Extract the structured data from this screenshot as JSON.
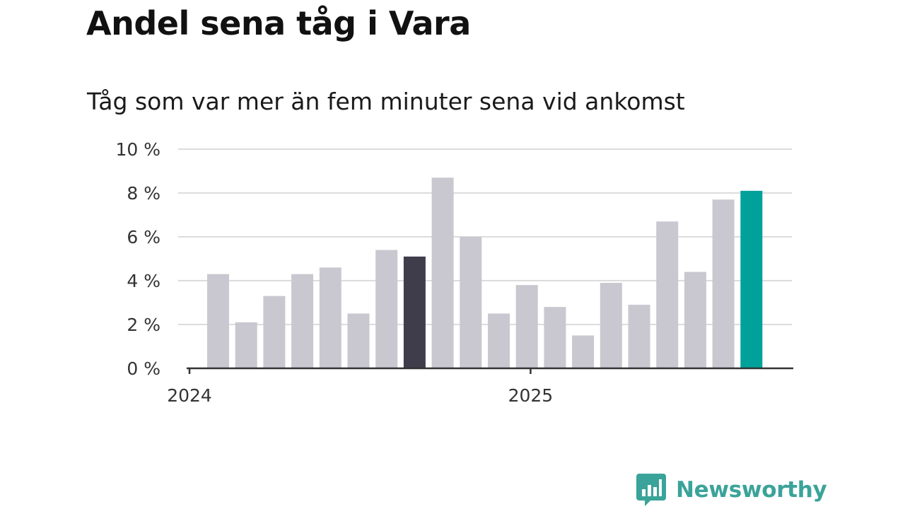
{
  "header": {
    "title": "Andel sena tåg i Vara",
    "subtitle": "Tåg som var mer än fem minuter sena vid ankomst"
  },
  "chart_data": {
    "type": "bar",
    "title": "Andel sena tåg i Vara",
    "subtitle": "Tåg som var mer än fem minuter sena vid ankomst",
    "xlabel": "",
    "ylabel": "",
    "x_tick_labels": [
      "2024",
      "2025"
    ],
    "y_tick_labels": [
      "0 %",
      "2 %",
      "4 %",
      "6 %",
      "8 %",
      "10 %"
    ],
    "ylim": [
      0,
      10
    ],
    "unit": "%",
    "grid": true,
    "series": [
      {
        "values": [
          4.3,
          2.1,
          3.3,
          4.3,
          4.6,
          2.5,
          5.4,
          5.1,
          8.7,
          6.0,
          2.5,
          3.8,
          2.8,
          1.5,
          3.9,
          2.9,
          6.7,
          4.4,
          7.7,
          8.1
        ]
      }
    ],
    "highlight_colors": {
      "default": "#c9c8d0",
      "previous_year": "#3f3d4b",
      "latest": "#00a19a"
    },
    "highlight_indices": {
      "previous_year": 7,
      "latest": 19
    }
  },
  "branding": {
    "logo_text": "Newsworthy",
    "logo_color": "#3aa39a",
    "logo_icon": "bar-chart-speech-bubble-icon"
  }
}
